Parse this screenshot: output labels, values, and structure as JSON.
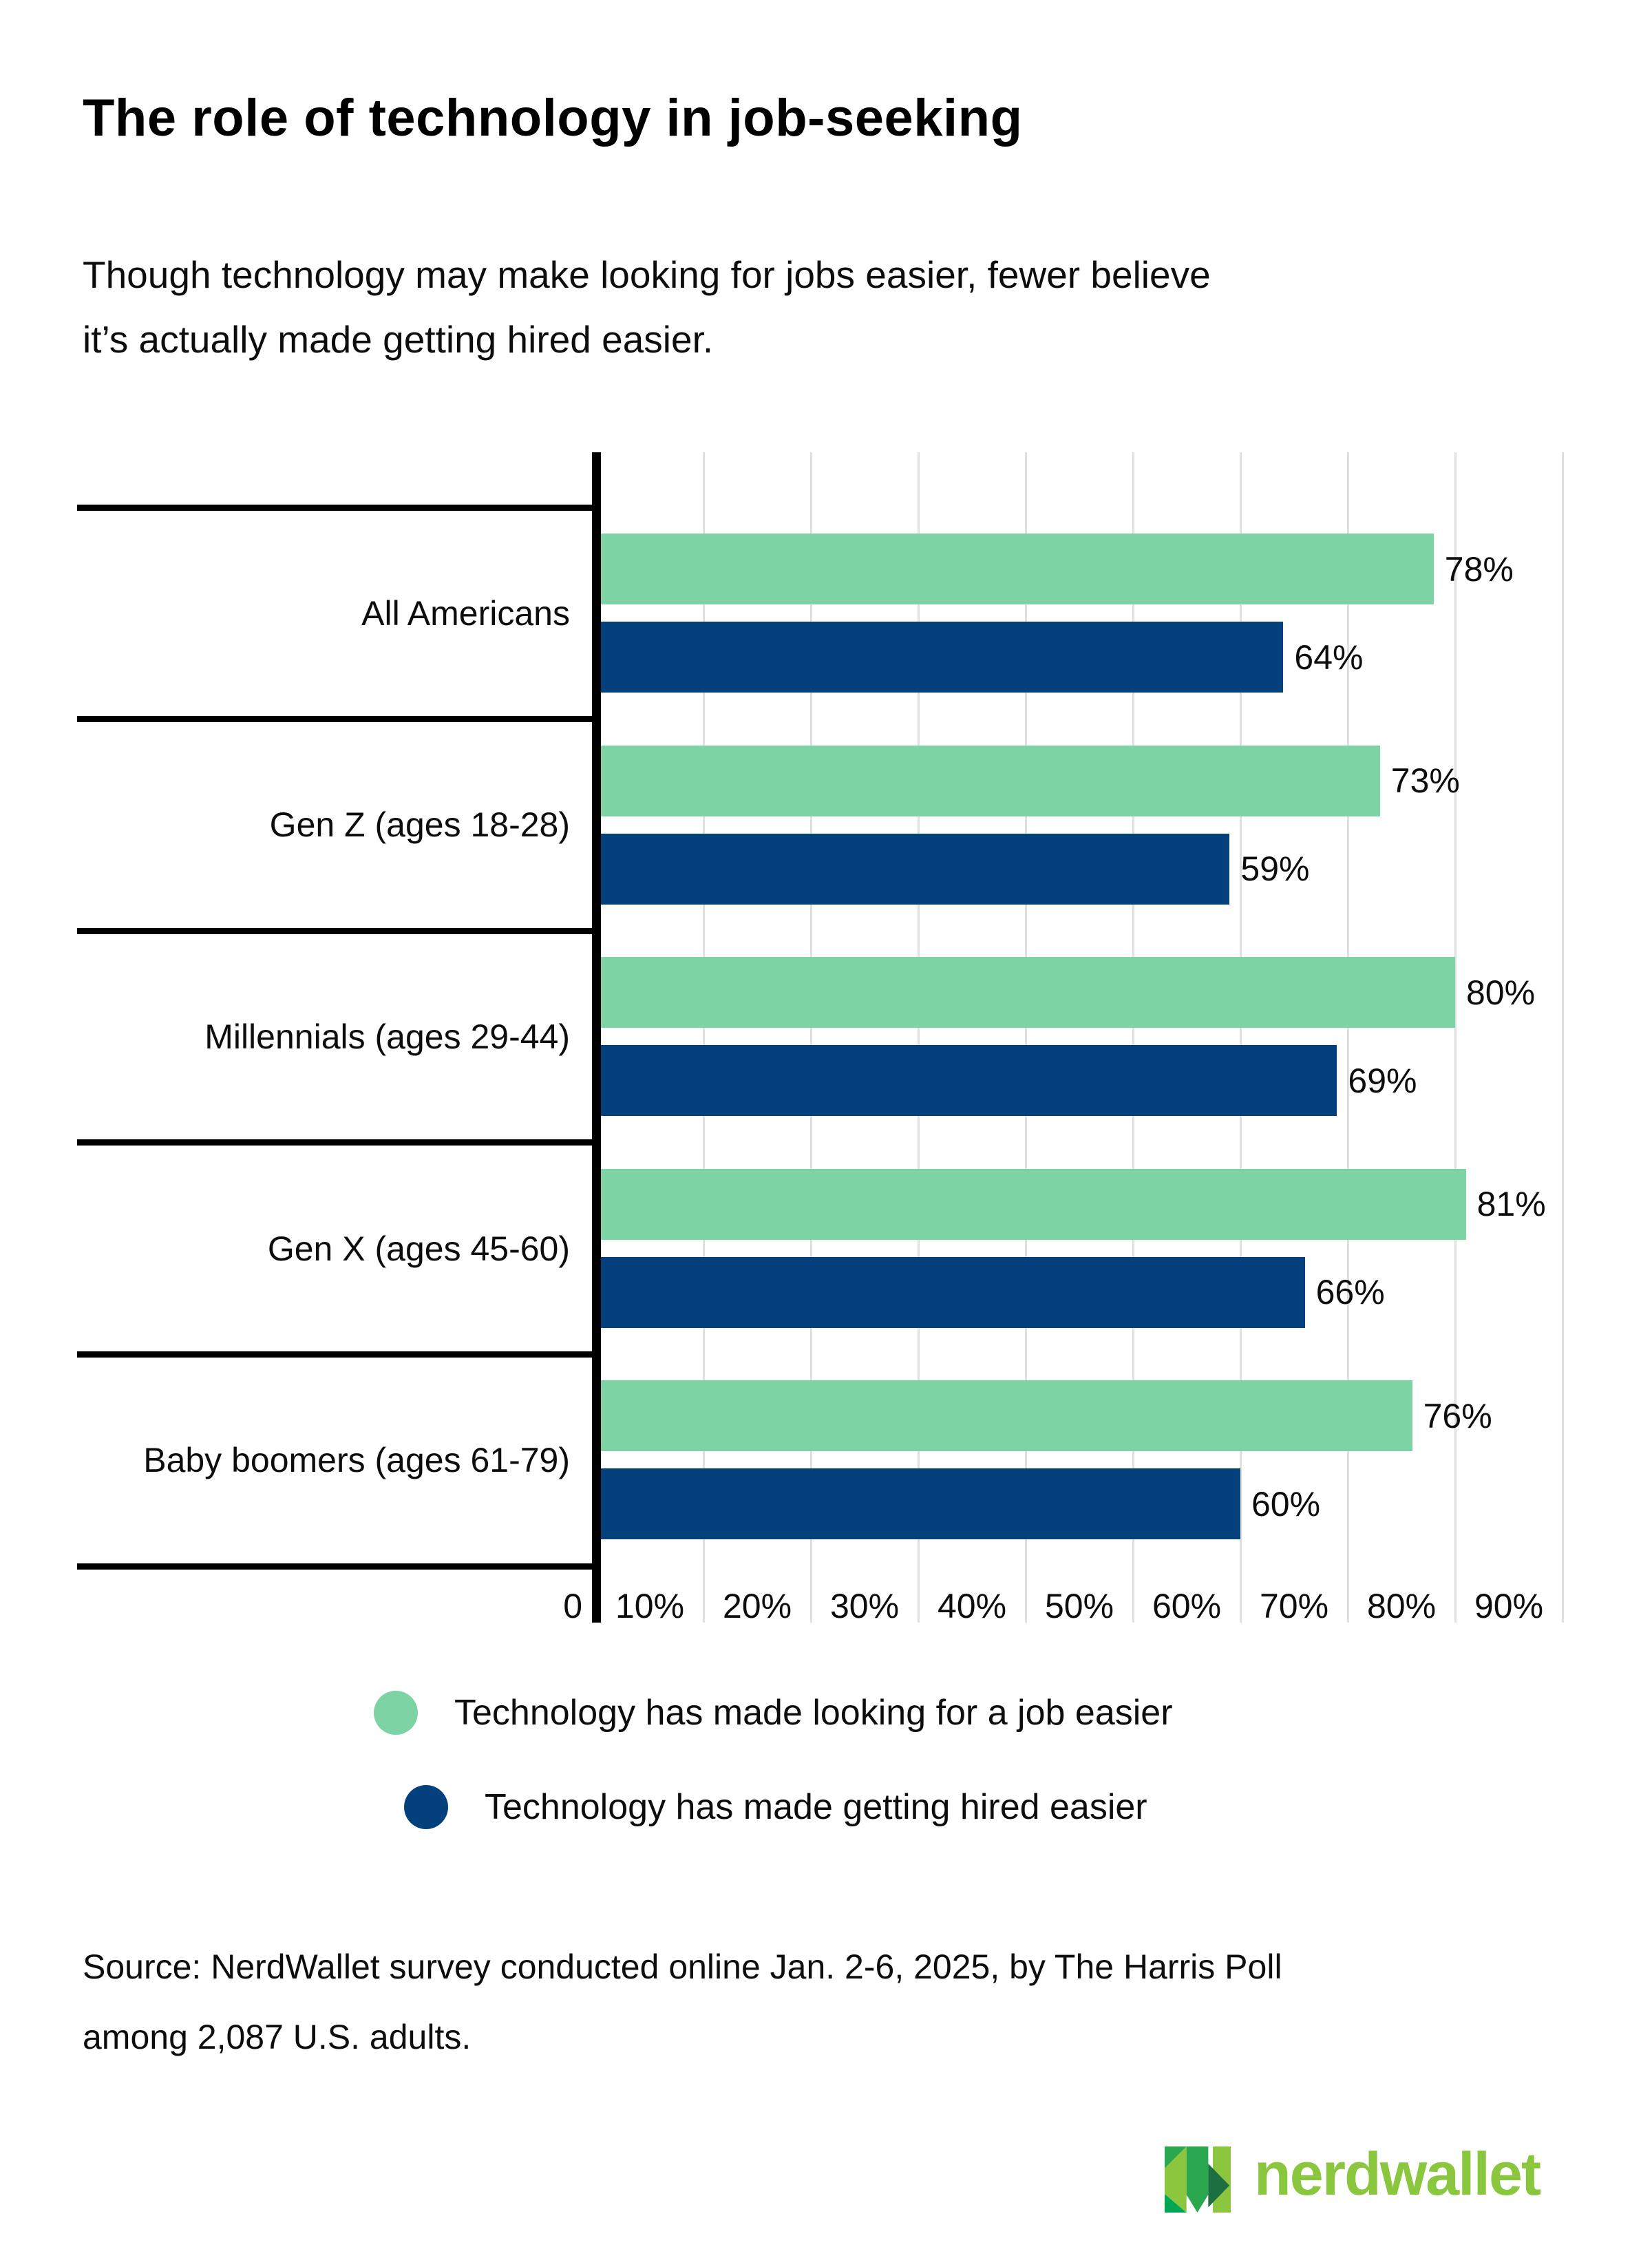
{
  "header": {
    "title": "The role of technology in job-seeking",
    "subtitle_lines": [
      "Though technology may make looking for jobs easier, fewer believe",
      "it’s actually made getting hired easier."
    ]
  },
  "chart_data": {
    "type": "bar",
    "orientation": "horizontal",
    "categories": [
      "All Americans",
      "Gen Z (ages 18-28)",
      "Millennials (ages 29-44)",
      "Gen X (ages 45-60)",
      "Baby boomers (ages 61-79)"
    ],
    "series": [
      {
        "name": "Technology has made looking for a job easier",
        "color": "#7ed3a4",
        "values": [
          78,
          73,
          80,
          81,
          76
        ]
      },
      {
        "name": "Technology has made getting hired easier",
        "color": "#04417c",
        "values": [
          64,
          59,
          69,
          66,
          60
        ]
      }
    ],
    "value_suffix": "%",
    "x_ticks": [
      "0",
      "10%",
      "20%",
      "30%",
      "40%",
      "50%",
      "60%",
      "70%",
      "80%",
      "90%"
    ],
    "xlim": [
      0,
      90
    ],
    "grid": true,
    "grid_color": "#e0e0e0",
    "axis_color": "#000000",
    "legend_position": "bottom"
  },
  "source": {
    "lines": [
      "Source: NerdWallet survey conducted online Jan. 2-6, 2025, by The Harris Poll",
      "among 2,087 U.S. adults."
    ]
  },
  "footer": {
    "logo_text": "nerdwallet",
    "logo_colors": {
      "light": "#8CC63F",
      "medium": "#2BA84F",
      "dark": "#1D6F42",
      "bright": "#00A651",
      "wordmark": "#8BC63F"
    }
  }
}
